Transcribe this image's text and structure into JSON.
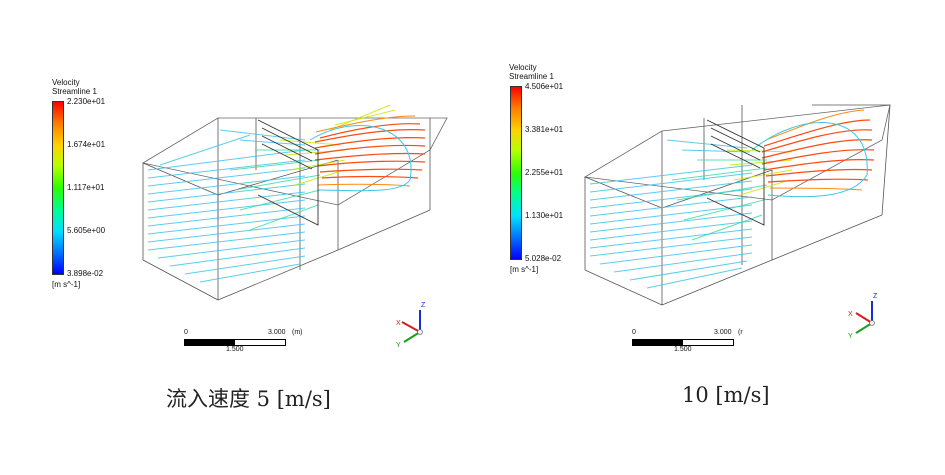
{
  "panels": [
    {
      "legend": {
        "title1": "Velocity",
        "title2": "Streamline 1",
        "ticks": [
          "2.230e+01",
          "1.674e+01",
          "1.117e+01",
          "5.605e+00",
          "3.898e-02"
        ],
        "unit": "[m s^-1]"
      },
      "scale": {
        "left": "0",
        "right": "3.000",
        "unit": "(m)",
        "mid": "1.500"
      },
      "caption": "流入速度  5 [m/s]"
    },
    {
      "legend": {
        "title1": "Velocity",
        "title2": "Streamline 1",
        "ticks": [
          "4.506e+01",
          "3.381e+01",
          "2.255e+01",
          "1.130e+01",
          "5.028e-02"
        ],
        "unit": "[m s^-1]"
      },
      "scale": {
        "left": "0",
        "right": "3.000",
        "unit": "(r",
        "mid": "1.500"
      },
      "caption": "10 [m/s]"
    }
  ],
  "axes": {
    "z": "Z",
    "x": "X",
    "y": "Y"
  },
  "colors": {
    "low": "#0000ff",
    "mid": "#00ff00",
    "high": "#ff0000",
    "lines": "#38c8e8",
    "hot": "#ff5a10"
  }
}
